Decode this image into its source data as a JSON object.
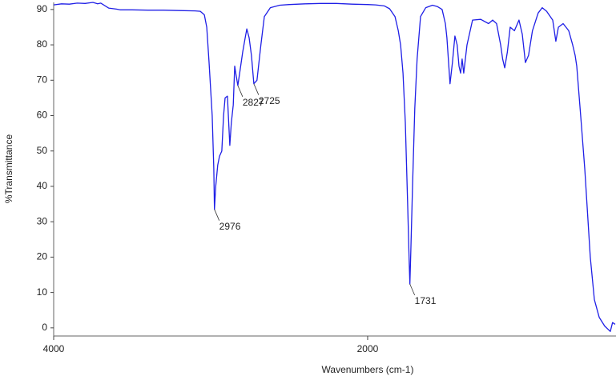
{
  "chart_data": {
    "type": "line",
    "xlabel": "Wavenumbers (cm-1)",
    "ylabel": "%Transmittance",
    "xlim": [
      4000,
      418
    ],
    "ylim": [
      -2.3,
      92
    ],
    "xticks": [
      4000,
      2000
    ],
    "yticks": [
      0,
      10,
      20,
      30,
      40,
      50,
      60,
      70,
      80,
      90
    ],
    "series": [
      {
        "name": "spectrum",
        "color": "#1f1fe6",
        "x": [
          4000,
          3950,
          3900,
          3850,
          3800,
          3750,
          3720,
          3700,
          3650,
          3600,
          3577,
          3500,
          3400,
          3300,
          3200,
          3100,
          3066,
          3040,
          3025,
          3010,
          2990,
          2980,
          2976,
          2968,
          2955,
          2944,
          2929,
          2918,
          2908,
          2893,
          2885,
          2878,
          2868,
          2856,
          2847,
          2840,
          2827,
          2815,
          2796,
          2780,
          2770,
          2755,
          2740,
          2725,
          2705,
          2680,
          2658,
          2620,
          2560,
          2500,
          2400,
          2300,
          2200,
          2100,
          2000,
          1950,
          1893,
          1860,
          1826,
          1805,
          1790,
          1775,
          1760,
          1745,
          1735,
          1731,
          1725,
          1714,
          1700,
          1685,
          1663,
          1630,
          1587,
          1555,
          1526,
          1505,
          1495,
          1475,
          1460,
          1444,
          1430,
          1418,
          1408,
          1398,
          1388,
          1367,
          1332,
          1280,
          1230,
          1204,
          1179,
          1153,
          1140,
          1127,
          1110,
          1092,
          1065,
          1036,
          1015,
          995,
          975,
          950,
          914,
          888,
          860,
          821,
          801,
          785,
          755,
          719,
          694,
          678,
          668,
          643,
          617,
          582,
          556,
          525,
          490,
          454,
          440,
          423
        ],
        "values": [
          91.3,
          91.6,
          91.5,
          91.8,
          91.7,
          92.0,
          91.6,
          91.8,
          90.4,
          90.1,
          89.9,
          89.9,
          89.8,
          89.8,
          89.7,
          89.6,
          89.5,
          88.5,
          85,
          75,
          60,
          45,
          33.5,
          40,
          46,
          48.5,
          50,
          60,
          65,
          65.5,
          58,
          51.6,
          58,
          63,
          74,
          72,
          68.5,
          72,
          78,
          82,
          84.5,
          82,
          77,
          69,
          70,
          80,
          88,
          90.5,
          91.2,
          91.4,
          91.6,
          91.7,
          91.7,
          91.5,
          91.4,
          91.3,
          91,
          90.2,
          88,
          84,
          80,
          72,
          58,
          35,
          18,
          12.4,
          22,
          40,
          62,
          76,
          88,
          90.5,
          91.2,
          90.8,
          90,
          86,
          82,
          69,
          75,
          82.5,
          80,
          74,
          72,
          76,
          72,
          80,
          87,
          87.2,
          86,
          87,
          86,
          80,
          76,
          73.5,
          78,
          85,
          84,
          87,
          83,
          75,
          77,
          84,
          89,
          90.5,
          89.5,
          87,
          81,
          85,
          86,
          84,
          80,
          77,
          74,
          60,
          45,
          20,
          8,
          3,
          0.5,
          -1,
          1.5,
          1
        ]
      }
    ],
    "annotations": [
      {
        "label": "2976",
        "x": 2976,
        "y": 33.5
      },
      {
        "label": "2827",
        "x": 2827,
        "y": 68.5
      },
      {
        "label": "2725",
        "x": 2725,
        "y": 69
      },
      {
        "label": "1731",
        "x": 1731,
        "y": 12.4
      }
    ]
  }
}
